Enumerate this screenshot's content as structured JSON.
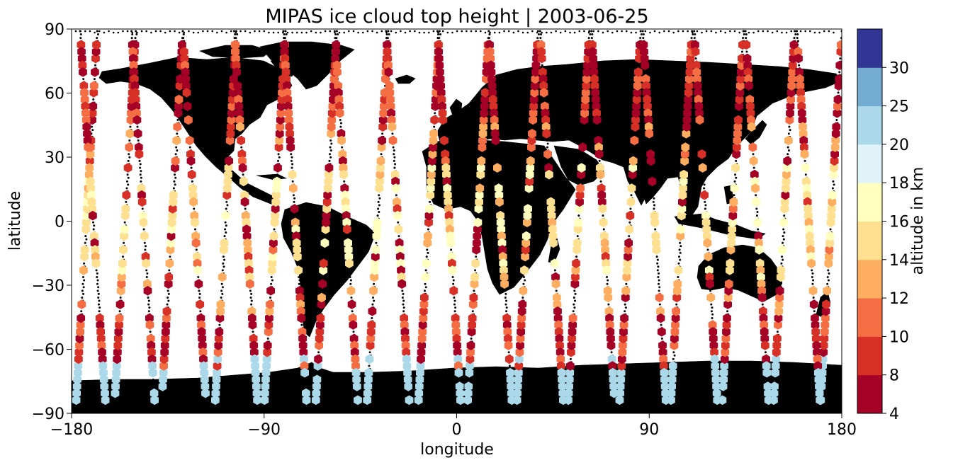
{
  "chart_data": {
    "type": "scatter",
    "title": "MIPAS ice cloud top height | 2003-06-25",
    "xlabel": "longitude",
    "ylabel": "latitude",
    "xlim": [
      -180,
      180
    ],
    "ylim": [
      -90,
      90
    ],
    "xticks": [
      -180,
      -90,
      0,
      90,
      180
    ],
    "yticks": [
      -90,
      -60,
      -30,
      0,
      30,
      60,
      90
    ],
    "grid": false,
    "marker": "hexagon",
    "land_color": "#bebebe",
    "no_cloud_marker": "black dots",
    "colorbar": {
      "label": "altitude in km",
      "placement": "right",
      "bounds": [
        4,
        8,
        10,
        12,
        14,
        16,
        18,
        20,
        25,
        30
      ],
      "tick_labels": [
        "4",
        "8",
        "10",
        "12",
        "14",
        "16",
        "18",
        "20",
        "25",
        "30"
      ],
      "colors": [
        "#a50026",
        "#d73027",
        "#f46d43",
        "#fdae61",
        "#fee090",
        "#ffffbf",
        "#e0f3f8",
        "#abd9e9",
        "#74add1",
        "#313695"
      ]
    },
    "tracks": [
      {
        "lon0": -178,
        "lat0": -87,
        "lon1": -168,
        "lat1": 89
      },
      {
        "lon0": -160,
        "lat0": -87,
        "lon1": -150,
        "lat1": 89
      },
      {
        "lon0": -138,
        "lat0": -87,
        "lon1": -128,
        "lat1": 89
      },
      {
        "lon0": -113,
        "lat0": -87,
        "lon1": -103,
        "lat1": 89
      },
      {
        "lon0": -90,
        "lat0": -87,
        "lon1": -80,
        "lat1": 89
      },
      {
        "lon0": -66,
        "lat0": -87,
        "lon1": -56,
        "lat1": 89
      },
      {
        "lon0": -42,
        "lat0": -87,
        "lon1": -32,
        "lat1": 89
      },
      {
        "lon0": -18,
        "lat0": -87,
        "lon1": -8,
        "lat1": 89
      },
      {
        "lon0": 5,
        "lat0": -87,
        "lon1": 15,
        "lat1": 89
      },
      {
        "lon0": 28,
        "lat0": -87,
        "lon1": 38,
        "lat1": 89
      },
      {
        "lon0": 52,
        "lat0": -87,
        "lon1": 62,
        "lat1": 89
      },
      {
        "lon0": 76,
        "lat0": -87,
        "lon1": 86,
        "lat1": 89
      },
      {
        "lon0": 100,
        "lat0": -87,
        "lon1": 110,
        "lat1": 89
      },
      {
        "lon0": 124,
        "lat0": -87,
        "lon1": 134,
        "lat1": 89
      },
      {
        "lon0": 148,
        "lat0": -87,
        "lon1": 158,
        "lat1": 89
      },
      {
        "lon0": 170,
        "lat0": -87,
        "lon1": 180,
        "lat1": 89
      },
      {
        "lon0": -176,
        "lat0": 89,
        "lon1": -164,
        "lat1": -87
      },
      {
        "lon0": -152,
        "lat0": 89,
        "lon1": -141,
        "lat1": -87
      },
      {
        "lon0": -128,
        "lat0": 89,
        "lon1": -117,
        "lat1": -87
      },
      {
        "lon0": -104,
        "lat0": 89,
        "lon1": -93,
        "lat1": -87
      },
      {
        "lon0": -81,
        "lat0": 89,
        "lon1": -70,
        "lat1": -87
      },
      {
        "lon0": -57,
        "lat0": 89,
        "lon1": -46,
        "lat1": -87
      },
      {
        "lon0": -33,
        "lat0": 89,
        "lon1": -22,
        "lat1": -87
      },
      {
        "lon0": -9,
        "lat0": 89,
        "lon1": 2,
        "lat1": -87
      },
      {
        "lon0": 15,
        "lat0": 89,
        "lon1": 26,
        "lat1": -87
      },
      {
        "lon0": 39,
        "lat0": 89,
        "lon1": 50,
        "lat1": -87
      },
      {
        "lon0": 63,
        "lat0": 89,
        "lon1": 74,
        "lat1": -87
      },
      {
        "lon0": 87,
        "lat0": 89,
        "lon1": 98,
        "lat1": -87
      },
      {
        "lon0": 111,
        "lat0": 89,
        "lon1": 122,
        "lat1": -87
      },
      {
        "lon0": 135,
        "lat0": 89,
        "lon1": 146,
        "lat1": -87
      },
      {
        "lon0": 159,
        "lat0": 89,
        "lon1": 170,
        "lat1": -87
      }
    ]
  }
}
